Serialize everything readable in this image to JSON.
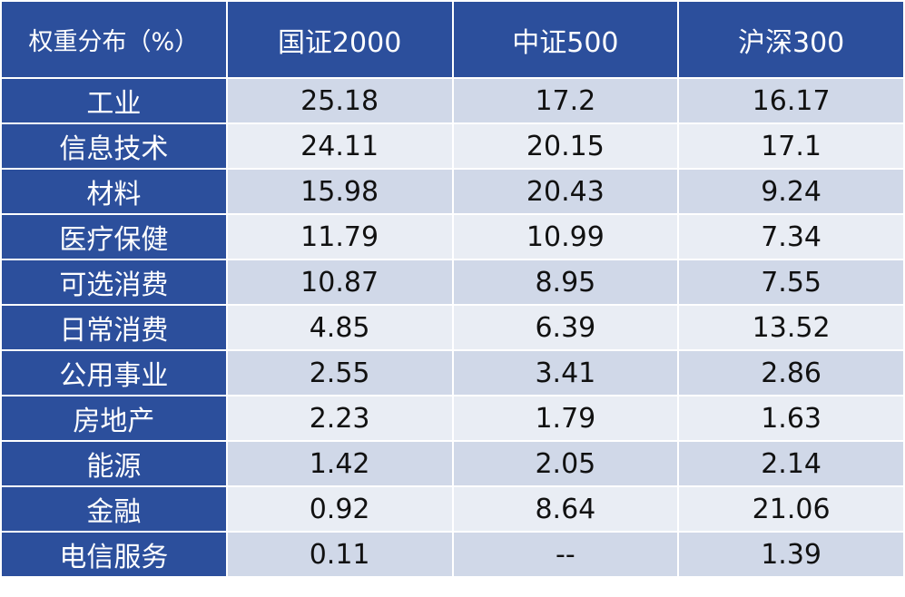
{
  "table": {
    "header": [
      "权重分布（%）",
      "国证2000",
      "中证500",
      "沪深300"
    ],
    "rows": [
      [
        "工业",
        "25.18",
        "17.2",
        "16.17"
      ],
      [
        "信息技术",
        "24.11",
        "20.15",
        "17.1"
      ],
      [
        "材料",
        "15.98",
        "20.43",
        "9.24"
      ],
      [
        "医疗保健",
        "11.79",
        "10.99",
        "7.34"
      ],
      [
        "可选消费",
        "10.87",
        "8.95",
        "7.55"
      ],
      [
        "日常消费",
        "4.85",
        "6.39",
        "13.52"
      ],
      [
        "公用事业",
        "2.55",
        "3.41",
        "2.86"
      ],
      [
        "房地产",
        "2.23",
        "1.79",
        "1.63"
      ],
      [
        "能源",
        "1.42",
        "2.05",
        "2.14"
      ],
      [
        "金融",
        "0.92",
        "8.64",
        "21.06"
      ],
      [
        "电信服务",
        "0.11",
        "--",
        "1.39"
      ]
    ]
  }
}
